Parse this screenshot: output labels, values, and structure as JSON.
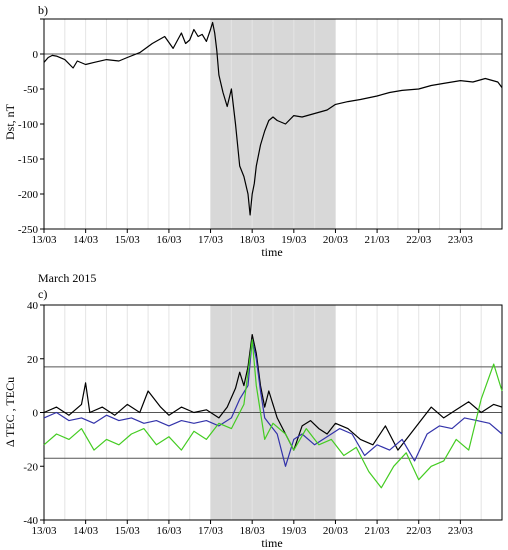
{
  "chart_data": [
    {
      "type": "line",
      "panel_label": "b)",
      "xlabel": "time",
      "ylabel": "Dst, nT",
      "x_tick_labels": [
        "13/03",
        "14/03",
        "15/03",
        "16/03",
        "17/03",
        "18/03",
        "19/03",
        "20/03",
        "21/03",
        "22/03",
        "23/03"
      ],
      "xlim_days": [
        0,
        11
      ],
      "ylim": [
        -250,
        50
      ],
      "y_ticks": [
        50,
        0,
        -50,
        -100,
        -150,
        -200,
        -250
      ],
      "y_tick_labels": [
        "",
        "0",
        "-50",
        "-100",
        "-150",
        "-200",
        "-250"
      ],
      "shaded_interval_days": [
        4,
        7
      ],
      "reference_lines": [
        0
      ],
      "colors": {
        "line": "#000000",
        "shade": "#d8d8d8",
        "grid": "#e4e4e4"
      },
      "series": [
        {
          "x": [
            0,
            0.1,
            0.2,
            0.3,
            0.5,
            0.7,
            0.8,
            1.0,
            1.2,
            1.5,
            1.8,
            2.0,
            2.3,
            2.6,
            2.9,
            3.1,
            3.3,
            3.4,
            3.5,
            3.6,
            3.7,
            3.8,
            3.9,
            4.0,
            4.05,
            4.1,
            4.15,
            4.2,
            4.3,
            4.4,
            4.5,
            4.6,
            4.7,
            4.8,
            4.9,
            4.95,
            5.0,
            5.05,
            5.1,
            5.2,
            5.3,
            5.4,
            5.5,
            5.6,
            5.8,
            6.0,
            6.2,
            6.5,
            6.8,
            7.0,
            7.3,
            7.6,
            8.0,
            8.3,
            8.6,
            9.0,
            9.3,
            9.6,
            10.0,
            10.3,
            10.6,
            10.9,
            11.0
          ],
          "y": [
            -12,
            -5,
            -2,
            -3,
            -8,
            -20,
            -10,
            -15,
            -12,
            -8,
            -10,
            -5,
            2,
            15,
            25,
            8,
            30,
            15,
            20,
            35,
            25,
            28,
            18,
            35,
            45,
            30,
            5,
            -30,
            -55,
            -75,
            -50,
            -100,
            -160,
            -175,
            -200,
            -230,
            -200,
            -185,
            -160,
            -130,
            -110,
            -95,
            -90,
            -95,
            -100,
            -88,
            -90,
            -85,
            -80,
            -72,
            -68,
            -65,
            -60,
            -55,
            -52,
            -50,
            -45,
            -42,
            -38,
            -40,
            -35,
            -40,
            -48
          ]
        }
      ]
    },
    {
      "type": "line",
      "title": "March 2015",
      "panel_label": "c)",
      "xlabel": "time",
      "ylabel": "Δ TEC , TECu",
      "x_tick_labels": [
        "13/03",
        "14/03",
        "15/03",
        "16/03",
        "17/03",
        "18/03",
        "19/03",
        "20/03",
        "21/03",
        "22/03",
        "23/03"
      ],
      "xlim_days": [
        0,
        11
      ],
      "ylim": [
        -40,
        40
      ],
      "y_ticks": [
        40,
        20,
        0,
        -20,
        -40
      ],
      "y_tick_labels": [
        "40",
        "20",
        "0",
        "-20",
        "-40"
      ],
      "shaded_interval_days": [
        4,
        7
      ],
      "reference_lines": [
        17,
        0,
        -17
      ],
      "colors": {
        "shade": "#d8d8d8",
        "grid": "#e4e4e4"
      },
      "series": [
        {
          "color": "#000000",
          "x": [
            0,
            0.3,
            0.6,
            0.9,
            1.0,
            1.1,
            1.4,
            1.7,
            2.0,
            2.3,
            2.5,
            2.8,
            3.0,
            3.3,
            3.6,
            3.9,
            4.2,
            4.4,
            4.6,
            4.7,
            4.8,
            4.9,
            5.0,
            5.1,
            5.2,
            5.3,
            5.4,
            5.5,
            5.6,
            5.8,
            6.0,
            6.2,
            6.4,
            6.6,
            6.8,
            7.0,
            7.3,
            7.6,
            7.9,
            8.2,
            8.5,
            8.8,
            9.0,
            9.3,
            9.6,
            9.9,
            10.2,
            10.5,
            10.8,
            11.0
          ],
          "y": [
            0,
            2,
            -1,
            3,
            11,
            0,
            2,
            -1,
            3,
            0,
            8,
            2,
            -1,
            2,
            0,
            1,
            -2,
            2,
            9,
            15,
            10,
            17,
            29,
            22,
            10,
            2,
            8,
            3,
            -2,
            -8,
            -14,
            -5,
            -3,
            -6,
            -8,
            -4,
            -6,
            -10,
            -12,
            -5,
            -14,
            -8,
            -4,
            2,
            -2,
            1,
            4,
            0,
            3,
            2
          ]
        },
        {
          "color": "#3333aa",
          "x": [
            0,
            0.3,
            0.6,
            0.9,
            1.2,
            1.5,
            1.8,
            2.1,
            2.4,
            2.7,
            3.0,
            3.3,
            3.6,
            3.9,
            4.2,
            4.5,
            4.7,
            4.9,
            5.0,
            5.1,
            5.2,
            5.3,
            5.4,
            5.6,
            5.8,
            6.0,
            6.2,
            6.5,
            6.8,
            7.1,
            7.4,
            7.7,
            8.0,
            8.3,
            8.6,
            8.9,
            9.2,
            9.5,
            9.8,
            10.1,
            10.4,
            10.7,
            11.0
          ],
          "y": [
            -2,
            0,
            -3,
            -2,
            -4,
            -1,
            -3,
            -2,
            -4,
            -3,
            -5,
            -3,
            -4,
            -3,
            -5,
            -2,
            5,
            10,
            27,
            20,
            8,
            -2,
            -4,
            -8,
            -20,
            -10,
            -8,
            -12,
            -9,
            -6,
            -8,
            -16,
            -12,
            -14,
            -10,
            -18,
            -8,
            -5,
            -6,
            -2,
            -3,
            -4,
            -8
          ]
        },
        {
          "color": "#44cc22",
          "x": [
            0,
            0.3,
            0.6,
            0.9,
            1.2,
            1.5,
            1.8,
            2.1,
            2.4,
            2.7,
            3.0,
            3.3,
            3.6,
            3.9,
            4.2,
            4.5,
            4.8,
            5.0,
            5.1,
            5.3,
            5.5,
            5.8,
            6.0,
            6.3,
            6.6,
            6.9,
            7.2,
            7.5,
            7.8,
            8.1,
            8.4,
            8.7,
            9.0,
            9.3,
            9.6,
            9.9,
            10.2,
            10.5,
            10.8,
            11.0
          ],
          "y": [
            -12,
            -8,
            -10,
            -6,
            -14,
            -10,
            -12,
            -8,
            -6,
            -12,
            -9,
            -14,
            -7,
            -10,
            -4,
            -6,
            3,
            27,
            10,
            -10,
            -4,
            -8,
            -14,
            -6,
            -12,
            -10,
            -16,
            -13,
            -22,
            -28,
            -20,
            -15,
            -25,
            -20,
            -18,
            -10,
            -14,
            5,
            18,
            8
          ]
        }
      ]
    }
  ]
}
